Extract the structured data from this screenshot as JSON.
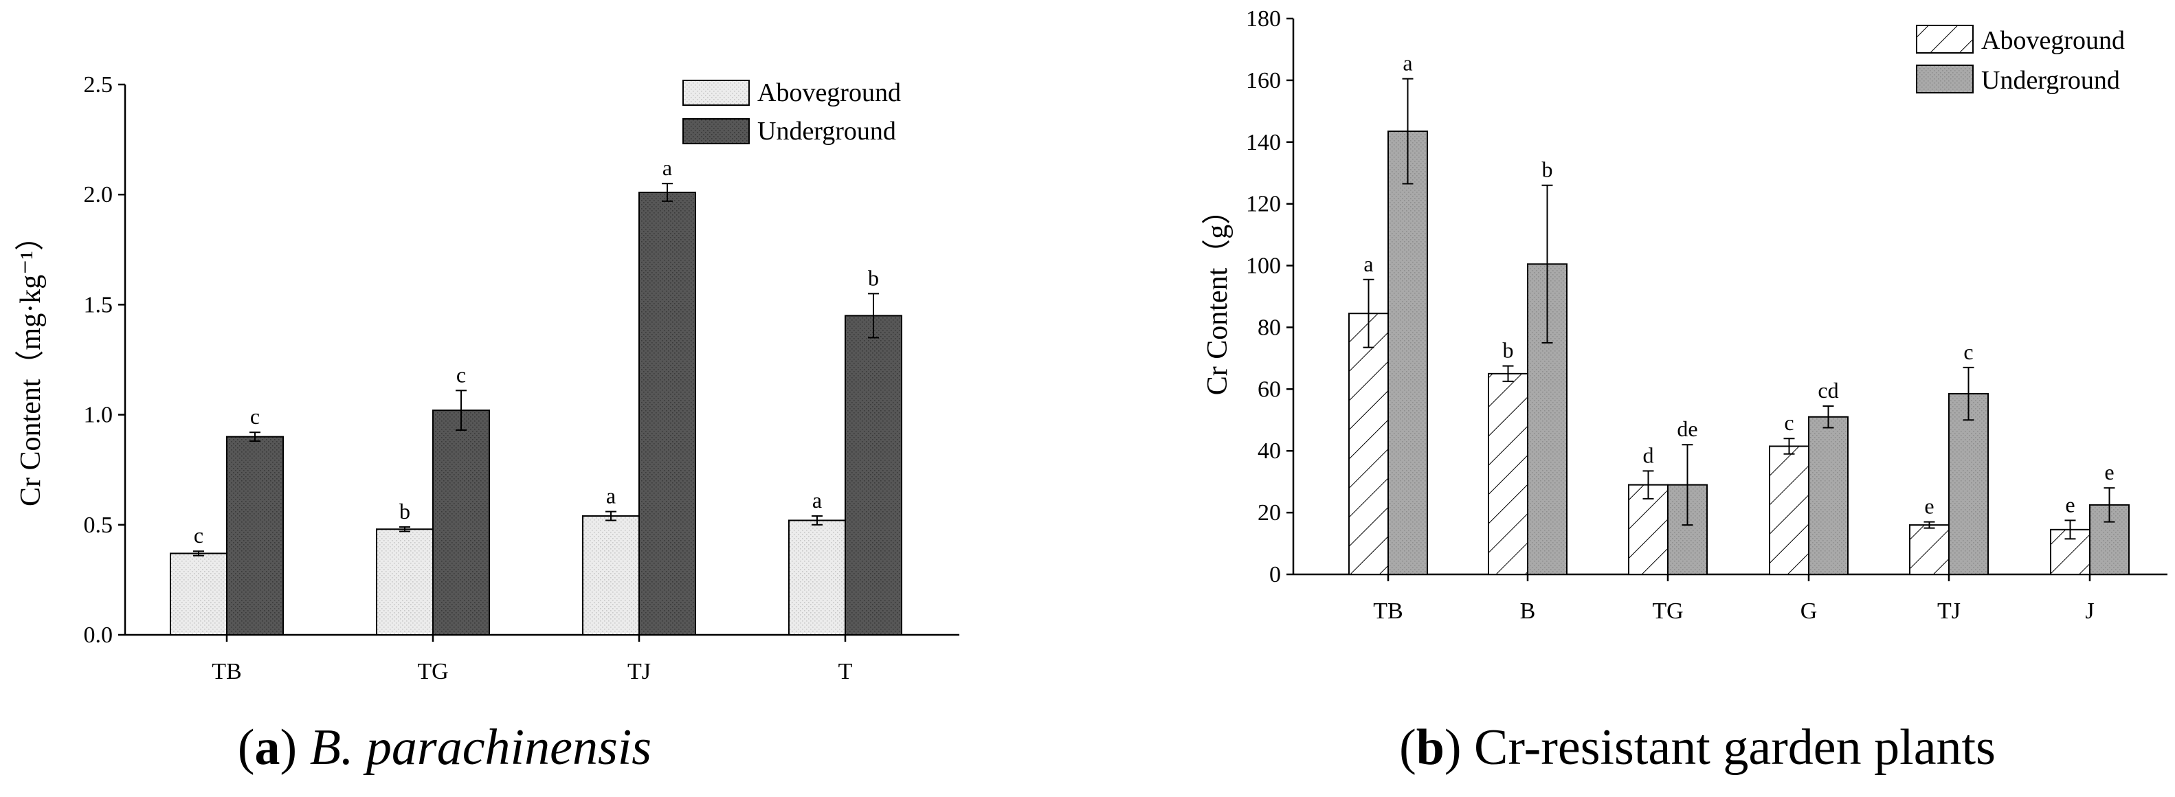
{
  "chart_data": [
    {
      "type": "bar",
      "panel": "a",
      "caption": {
        "label": "a",
        "title": "B. parachinensis"
      },
      "ylabel": "Cr Content（mg·kg⁻¹）",
      "xlabel": "",
      "ylim": [
        0,
        2.5
      ],
      "yticks": [
        "0.0",
        "0.5",
        "1.0",
        "1.5",
        "2.0",
        "2.5"
      ],
      "categories": [
        "TB",
        "TG",
        "TJ",
        "T"
      ],
      "legend_position": "top-right",
      "series": [
        {
          "name": "Aboveground",
          "color": "#eaeaea",
          "values": [
            0.37,
            0.48,
            0.54,
            0.52
          ],
          "errors": [
            0.01,
            0.01,
            0.02,
            0.02
          ],
          "letters": [
            "c",
            "b",
            "a",
            "a"
          ]
        },
        {
          "name": "Underground",
          "color": "#555555",
          "values": [
            0.9,
            1.02,
            2.01,
            1.45
          ],
          "errors": [
            0.02,
            0.09,
            0.04,
            0.1
          ],
          "letters": [
            "c",
            "c",
            "a",
            "b"
          ]
        }
      ]
    },
    {
      "type": "bar",
      "panel": "b",
      "caption": {
        "label": "b",
        "title": "Cr-resistant garden plants"
      },
      "ylabel": "Cr Content（g）",
      "xlabel": "",
      "ylim": [
        0,
        180
      ],
      "yticks": [
        "0",
        "20",
        "40",
        "60",
        "80",
        "100",
        "120",
        "140",
        "160",
        "180"
      ],
      "categories": [
        "TB",
        "B",
        "TG",
        "G",
        "TJ",
        "J"
      ],
      "legend_position": "top-right",
      "series": [
        {
          "name": "Aboveground",
          "pattern": "hatched",
          "values": [
            84.5,
            65,
            29,
            41.5,
            16,
            14.5
          ],
          "errors": [
            11,
            2.5,
            4.5,
            2.5,
            1,
            3
          ],
          "letters": [
            "a",
            "b",
            "d",
            "c",
            "e",
            "e"
          ]
        },
        {
          "name": "Underground",
          "color": "#a6a6a6",
          "values": [
            143.5,
            100.5,
            29,
            51,
            58.5,
            22.5
          ],
          "errors": [
            17,
            25.5,
            13,
            3.5,
            8.5,
            5.5
          ],
          "letters": [
            "a",
            "b",
            "de",
            "cd",
            "c",
            "e"
          ]
        }
      ]
    }
  ]
}
